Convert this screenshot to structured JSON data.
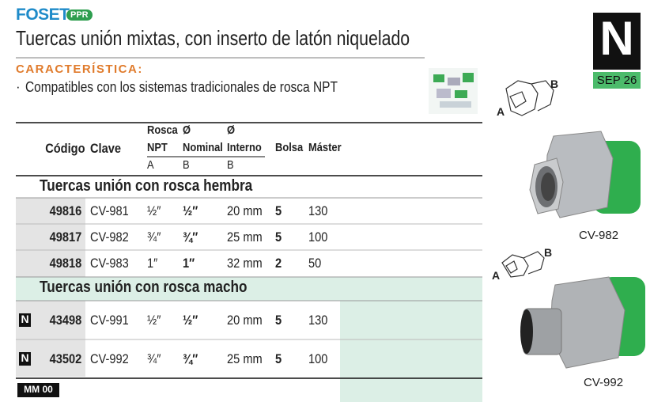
{
  "header": {
    "brand": "FOSET",
    "badge": "PPR",
    "title": "Tuercas unión mixtas, con inserto de latón niquelado"
  },
  "edition": {
    "letter": "N",
    "date": "SEP 26"
  },
  "features": {
    "heading": "CARACTERÍSTICA:",
    "items": [
      "Compatibles con los sistemas tradicionales de rosca NPT"
    ]
  },
  "table": {
    "columns": [
      {
        "label": "Código"
      },
      {
        "label": "Clave"
      },
      {
        "line1": "Rosca",
        "line2": "NPT",
        "sub": "A"
      },
      {
        "line1": "Ø",
        "line2": "Nominal",
        "sub": "B"
      },
      {
        "line1": "Ø",
        "line2": "Interno",
        "sub": "B"
      },
      {
        "label": "Bolsa"
      },
      {
        "label": "Máster"
      }
    ],
    "sections": [
      {
        "title": "Tuercas unión con rosca hembra",
        "rows": [
          {
            "cells": [
              "49816",
              "CV-981",
              "½″",
              "½″",
              "20 mm",
              "5",
              "130"
            ]
          },
          {
            "cells": [
              "49817",
              "CV-982",
              "¾″",
              "¾″",
              "25 mm",
              "5",
              "100"
            ]
          },
          {
            "cells": [
              "49818",
              "CV-983",
              "1″",
              "1″",
              "32 mm",
              "2",
              "50"
            ]
          }
        ]
      },
      {
        "title": "Tuercas unión con rosca macho",
        "rows": [
          {
            "marker": "N",
            "cells": [
              "43498",
              "CV-991",
              "½″",
              "½″",
              "20 mm",
              "5",
              "130"
            ]
          },
          {
            "marker": "N",
            "cells": [
              "43502",
              "CV-992",
              "¾″",
              "¾″",
              "25 mm",
              "5",
              "100"
            ]
          }
        ]
      }
    ]
  },
  "figures": [
    {
      "a": "A",
      "b": "B",
      "label": "CV-982"
    },
    {
      "a": "A",
      "b": "B",
      "label": "CV-992"
    }
  ],
  "footer": "MM 00"
}
